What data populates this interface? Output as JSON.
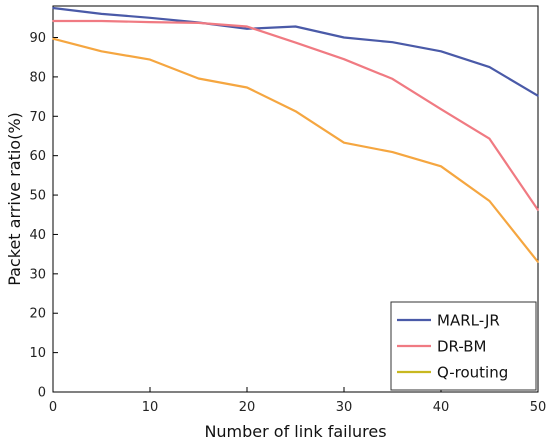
{
  "chart_data": {
    "type": "line",
    "title": "",
    "xlabel": "Number of link failures",
    "ylabel": "Packet arrive ratio(%)",
    "xlim": [
      0,
      50
    ],
    "ylim": [
      0,
      98
    ],
    "xticks": [
      0,
      10,
      20,
      30,
      40,
      50
    ],
    "yticks": [
      0,
      10,
      20,
      30,
      40,
      50,
      60,
      70,
      80,
      90
    ],
    "grid": false,
    "legend_position": "bottom-right",
    "x": [
      0,
      5,
      10,
      15,
      20,
      25,
      30,
      35,
      40,
      45,
      50
    ],
    "series": [
      {
        "name": "MARL-JR",
        "color": "#4a5aa8",
        "values": [
          97.5,
          96,
          95,
          93.8,
          92.2,
          92.8,
          90,
          88.8,
          86.5,
          82.5,
          75.2
        ]
      },
      {
        "name": "DR-BM",
        "color": "#f07a82",
        "values": [
          94.2,
          94.2,
          93.9,
          93.7,
          92.8,
          88.7,
          84.5,
          79.5,
          71.8,
          64.3,
          46.2
        ]
      },
      {
        "name": "Q-routing",
        "color": "#f5a640",
        "legend_color": "#c8b820",
        "values": [
          89.7,
          86.5,
          84.4,
          79.6,
          77.3,
          71.3,
          63.3,
          60.9,
          57.3,
          48.5,
          33
        ]
      }
    ]
  }
}
